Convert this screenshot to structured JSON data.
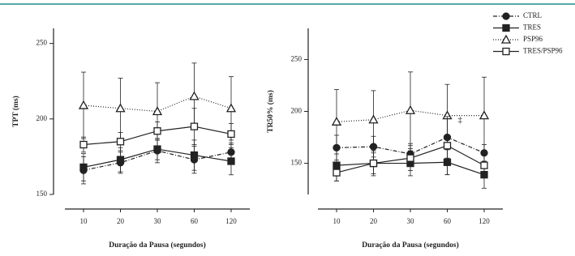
{
  "chart_data": [
    {
      "type": "line",
      "ylabel": "TPT (ms)",
      "xlabel": "Duração da Pausa (segundos)",
      "categories": [
        "10",
        "20",
        "30",
        "60",
        "120"
      ],
      "ylim": [
        150,
        260
      ],
      "yticks": [
        150,
        200,
        250
      ],
      "series": [
        {
          "color": "#222222",
          "marker": "circle-filled",
          "dash": "dashed",
          "values": [
            166,
            171,
            179,
            173,
            178
          ],
          "errors": [
            9,
            7,
            8,
            9,
            6
          ]
        },
        {
          "color": "#222222",
          "marker": "square-filled",
          "dash": "solid",
          "values": [
            168,
            173,
            180,
            176,
            172
          ],
          "errors": [
            9,
            8,
            7,
            10,
            9
          ]
        },
        {
          "color": "#222222",
          "marker": "triangle-open",
          "dash": "dotted",
          "values": [
            209,
            207,
            205,
            215,
            207
          ],
          "errors": [
            22,
            20,
            19,
            22,
            21
          ]
        },
        {
          "color": "#222222",
          "marker": "square-open",
          "dash": "solid",
          "values": [
            183,
            185,
            192,
            195,
            190
          ],
          "errors": [
            5,
            6,
            6,
            12,
            7
          ]
        }
      ]
    },
    {
      "type": "line",
      "ylabel": "TR50% (ms)",
      "xlabel": "Duração da Pausa (segundos)",
      "categories": [
        "10",
        "20",
        "30",
        "60",
        "120"
      ],
      "ylim": [
        120,
        280
      ],
      "yticks": [
        150,
        200,
        250
      ],
      "annotation": "‡",
      "series": [
        {
          "name": "CTRL",
          "color": "#222222",
          "marker": "circle-filled",
          "dash": "dashed",
          "values": [
            165,
            166,
            159,
            175,
            160
          ],
          "errors": [
            12,
            10,
            10,
            20,
            8
          ]
        },
        {
          "name": "TRES",
          "color": "#222222",
          "marker": "square-filled",
          "dash": "solid",
          "values": [
            148,
            150,
            150,
            151,
            139
          ],
          "errors": [
            15,
            12,
            12,
            12,
            13
          ]
        },
        {
          "name": "PSP96",
          "color": "#222222",
          "marker": "triangle-open",
          "dash": "dotted",
          "values": [
            190,
            192,
            201,
            196,
            196
          ],
          "errors": [
            31,
            28,
            37,
            30,
            37
          ]
        },
        {
          "name": "TRES/PSP96",
          "color": "#222222",
          "marker": "square-open",
          "dash": "solid",
          "values": [
            141,
            150,
            155,
            167,
            148
          ],
          "errors": [
            8,
            10,
            12,
            28,
            10
          ]
        }
      ]
    }
  ]
}
